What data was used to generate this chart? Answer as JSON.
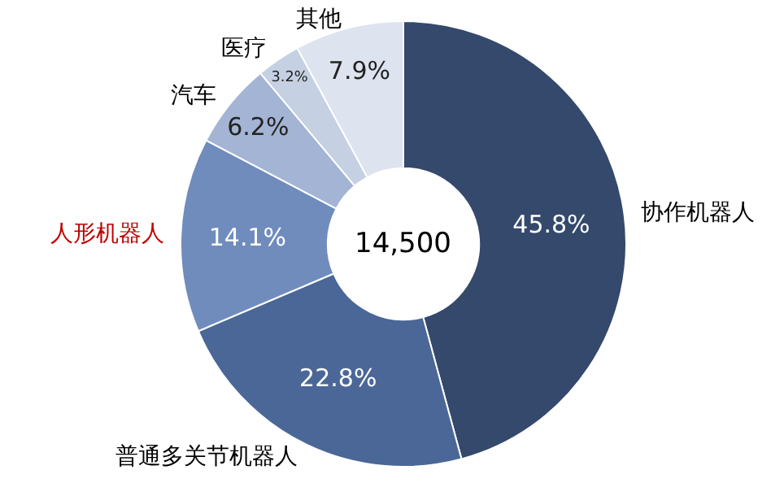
{
  "chart_data": {
    "type": "donut",
    "categories": [
      "协作机器人",
      "普通多关节机器人",
      "人形机器人",
      "汽车",
      "医疗",
      "其他"
    ],
    "values": [
      45.8,
      22.8,
      14.1,
      6.2,
      3.2,
      7.9
    ],
    "value_labels": [
      "45.8%",
      "22.8%",
      "14.1%",
      "6.2%",
      "3.2%",
      "7.9%"
    ],
    "colors": [
      "#34496b",
      "#4a6797",
      "#6f8cbd",
      "#a3b4d4",
      "#c5d0e3",
      "#dde3ef"
    ],
    "annotations": [
      "14,500"
    ],
    "legend": false
  }
}
